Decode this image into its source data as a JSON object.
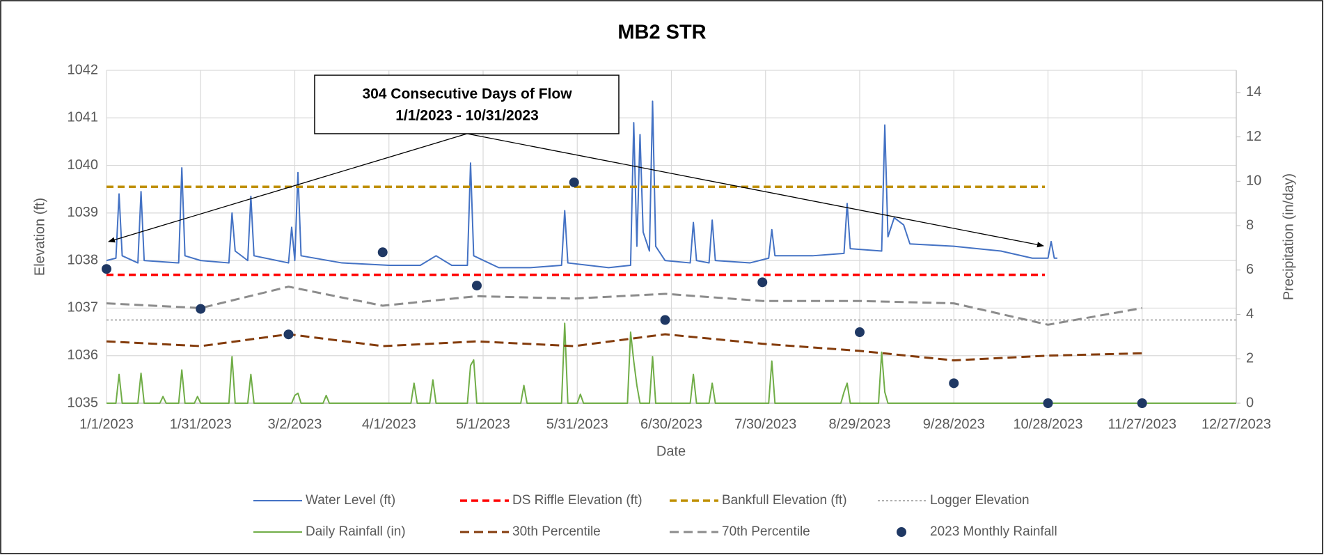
{
  "chart_data": {
    "type": "line",
    "title": "MB2 STR",
    "xlabel": "Date",
    "ylabel": "Elevation (ft)",
    "y2label": "Precipitation (in/day)",
    "annotation": [
      "304 Consecutive Days of Flow",
      "1/1/2023 - 10/31/2023"
    ],
    "xlim": [
      "1/1/2023",
      "12/27/2023"
    ],
    "xticks": [
      "1/1/2023",
      "1/31/2023",
      "3/2/2023",
      "4/1/2023",
      "5/1/2023",
      "5/31/2023",
      "6/30/2023",
      "7/30/2023",
      "8/29/2023",
      "9/28/2023",
      "10/28/2023",
      "11/27/2023",
      "12/27/2023"
    ],
    "ylim": [
      1035,
      1042
    ],
    "yticks": [
      1035,
      1036,
      1037,
      1038,
      1039,
      1040,
      1041,
      1042
    ],
    "y2lim": [
      0,
      15
    ],
    "y2ticks": [
      0,
      2,
      4,
      6,
      8,
      10,
      12,
      14
    ],
    "grid": true,
    "legend": "bottom",
    "series": [
      {
        "name": "Water Level (ft)",
        "color": "#4472c4",
        "style": "solid",
        "axis": "y",
        "x": [
          "1/1/2023",
          "1/4/2023",
          "1/5/2023",
          "1/6/2023",
          "1/11/2023",
          "1/12/2023",
          "1/13/2023",
          "1/24/2023",
          "1/25/2023",
          "1/26/2023",
          "1/31/2023",
          "2/9/2023",
          "2/10/2023",
          "2/11/2023",
          "2/15/2023",
          "2/16/2023",
          "2/17/2023",
          "2/28/2023",
          "3/1/2023",
          "3/2/2023",
          "3/3/2023",
          "3/4/2023",
          "3/17/2023",
          "4/1/2023",
          "4/11/2023",
          "4/16/2023",
          "4/21/2023",
          "4/26/2023",
          "4/27/2023",
          "4/28/2023",
          "5/6/2023",
          "5/16/2023",
          "5/26/2023",
          "5/27/2023",
          "5/28/2023",
          "6/10/2023",
          "6/17/2023",
          "6/18/2023",
          "6/19/2023",
          "6/20/2023",
          "6/21/2023",
          "6/23/2023",
          "6/24/2023",
          "6/25/2023",
          "6/28/2023",
          "7/6/2023",
          "7/7/2023",
          "7/8/2023",
          "7/12/2023",
          "7/13/2023",
          "7/14/2023",
          "7/25/2023",
          "7/31/2023",
          "8/1/2023",
          "8/2/2023",
          "8/14/2023",
          "8/24/2023",
          "8/25/2023",
          "8/26/2023",
          "9/5/2023",
          "9/6/2023",
          "9/7/2023",
          "9/9/2023",
          "9/12/2023",
          "9/14/2023",
          "9/28/2023",
          "10/13/2023",
          "10/23/2023",
          "10/28/2023",
          "10/29/2023",
          "10/30/2023",
          "10/31/2023"
        ],
        "values": [
          1038.0,
          1038.05,
          1039.4,
          1038.1,
          1037.95,
          1039.45,
          1038.0,
          1037.95,
          1039.95,
          1038.1,
          1038.0,
          1037.95,
          1039.0,
          1038.2,
          1038.0,
          1039.35,
          1038.1,
          1037.95,
          1038.7,
          1038.0,
          1039.85,
          1038.1,
          1037.95,
          1037.9,
          1037.9,
          1038.1,
          1037.9,
          1037.9,
          1040.05,
          1038.1,
          1037.85,
          1037.85,
          1037.9,
          1039.05,
          1037.95,
          1037.85,
          1037.9,
          1040.9,
          1038.3,
          1040.65,
          1038.6,
          1038.2,
          1041.35,
          1038.3,
          1038.0,
          1037.95,
          1038.8,
          1038.0,
          1037.95,
          1038.85,
          1038.0,
          1037.95,
          1038.05,
          1038.65,
          1038.1,
          1038.1,
          1038.15,
          1039.2,
          1038.25,
          1038.2,
          1040.85,
          1038.5,
          1038.9,
          1038.75,
          1038.35,
          1038.3,
          1038.2,
          1038.05,
          1038.05,
          1038.4,
          1038.05,
          1038.05
        ]
      },
      {
        "name": "DS Riffle Elevation (ft)",
        "color": "#ff0000",
        "style": "dashed",
        "axis": "y",
        "x": [
          "1/1/2023",
          "10/27/2023"
        ],
        "values": [
          1037.7,
          1037.7
        ]
      },
      {
        "name": "Bankfull Elevation (ft)",
        "color": "#bf9000",
        "style": "dashed",
        "axis": "y",
        "x": [
          "1/1/2023",
          "10/27/2023"
        ],
        "values": [
          1039.55,
          1039.55
        ]
      },
      {
        "name": "Logger Elevation",
        "color": "#a5a5a5",
        "style": "dotted",
        "axis": "y",
        "x": [
          "1/1/2023",
          "12/27/2023"
        ],
        "values": [
          1036.75,
          1036.75
        ]
      },
      {
        "name": "Daily Rainfall (in)",
        "color": "#70ad47",
        "style": "solid",
        "axis": "y2",
        "x": [
          "1/1/2023",
          "1/4/2023",
          "1/5/2023",
          "1/6/2023",
          "1/11/2023",
          "1/12/2023",
          "1/13/2023",
          "1/18/2023",
          "1/19/2023",
          "1/20/2023",
          "1/24/2023",
          "1/25/2023",
          "1/26/2023",
          "1/29/2023",
          "1/30/2023",
          "1/31/2023",
          "2/9/2023",
          "2/10/2023",
          "2/11/2023",
          "2/15/2023",
          "2/16/2023",
          "2/17/2023",
          "3/1/2023",
          "3/2/2023",
          "3/3/2023",
          "3/4/2023",
          "3/11/2023",
          "3/12/2023",
          "3/13/2023",
          "4/8/2023",
          "4/9/2023",
          "4/10/2023",
          "4/14/2023",
          "4/15/2023",
          "4/16/2023",
          "4/26/2023",
          "4/27/2023",
          "4/28/2023",
          "4/29/2023",
          "5/13/2023",
          "5/14/2023",
          "5/15/2023",
          "5/26/2023",
          "5/27/2023",
          "5/28/2023",
          "5/31/2023",
          "6/1/2023",
          "6/2/2023",
          "6/16/2023",
          "6/17/2023",
          "6/18/2023",
          "6/19/2023",
          "6/20/2023",
          "6/23/2023",
          "6/24/2023",
          "6/25/2023",
          "7/6/2023",
          "7/7/2023",
          "7/8/2023",
          "7/12/2023",
          "7/13/2023",
          "7/14/2023",
          "7/31/2023",
          "8/1/2023",
          "8/2/2023",
          "8/23/2023",
          "8/24/2023",
          "8/25/2023",
          "8/26/2023",
          "9/4/2023",
          "9/5/2023",
          "9/6/2023",
          "9/7/2023",
          "12/27/2023"
        ],
        "values": [
          0,
          0,
          1.3,
          0,
          0,
          1.35,
          0,
          0,
          0.3,
          0,
          0,
          1.5,
          0,
          0,
          0.3,
          0,
          0,
          2.1,
          0,
          0,
          1.3,
          0,
          0,
          0.35,
          0.45,
          0,
          0,
          0.35,
          0,
          0,
          0.9,
          0,
          0,
          1.05,
          0,
          0,
          1.7,
          1.95,
          0,
          0,
          0.8,
          0,
          0,
          3.6,
          0,
          0,
          0.4,
          0,
          0,
          3.2,
          1.9,
          0.8,
          0,
          0,
          2.1,
          0,
          0,
          1.3,
          0,
          0,
          0.9,
          0,
          0,
          1.9,
          0,
          0,
          0.5,
          0.9,
          0,
          0,
          2.3,
          0.5,
          0,
          0
        ]
      },
      {
        "name": "30th Percentile",
        "color": "#843c0c",
        "style": "dashed",
        "axis": "y",
        "x": [
          "1/1/2023",
          "1/31/2023",
          "2/28/2023",
          "3/30/2023",
          "4/29/2023",
          "5/30/2023",
          "6/28/2023",
          "7/29/2023",
          "8/29/2023",
          "9/28/2023",
          "10/28/2023",
          "11/27/2023"
        ],
        "values": [
          1036.3,
          1036.2,
          1036.45,
          1036.2,
          1036.3,
          1036.2,
          1036.45,
          1036.25,
          1036.1,
          1035.9,
          1036.0,
          1036.05
        ]
      },
      {
        "name": "70th Percentile",
        "color": "#8c8c8c",
        "style": "dashed",
        "axis": "y",
        "x": [
          "1/1/2023",
          "1/31/2023",
          "2/28/2023",
          "3/30/2023",
          "4/29/2023",
          "5/30/2023",
          "6/28/2023",
          "7/29/2023",
          "8/29/2023",
          "9/28/2023",
          "10/28/2023",
          "11/27/2023"
        ],
        "values": [
          1037.1,
          1037.0,
          1037.45,
          1037.05,
          1037.25,
          1037.2,
          1037.3,
          1037.15,
          1037.15,
          1037.1,
          1036.65,
          1037.0
        ]
      },
      {
        "name": "2023 Monthly Rainfall",
        "color": "#1f3864",
        "style": "marker",
        "axis": "y2",
        "x": [
          "1/1/2023",
          "1/31/2023",
          "2/28/2023",
          "3/30/2023",
          "4/29/2023",
          "5/30/2023",
          "6/28/2023",
          "7/29/2023",
          "8/29/2023",
          "9/28/2023",
          "10/28/2023",
          "11/27/2023"
        ],
        "values": [
          6.05,
          4.25,
          3.1,
          6.8,
          5.3,
          9.95,
          3.75,
          5.45,
          3.2,
          0.9,
          0,
          0
        ]
      }
    ]
  }
}
